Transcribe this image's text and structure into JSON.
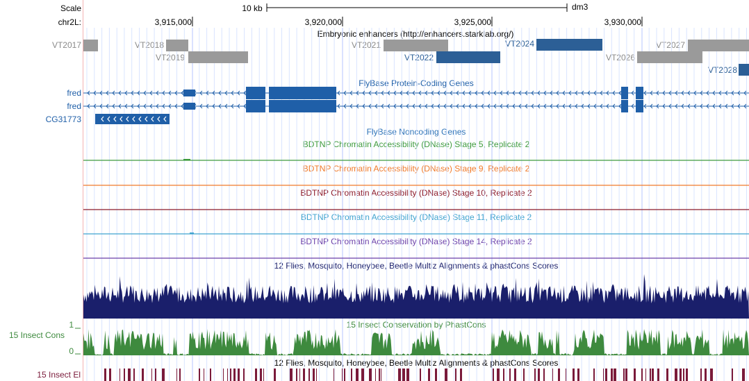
{
  "assembly": "dm3",
  "scale": {
    "label": "Scale",
    "bar_label": "10 kb"
  },
  "chrom": {
    "label": "chr2L:"
  },
  "ticks": [
    {
      "label": "3,915,000"
    },
    {
      "label": "3,920,000"
    },
    {
      "label": "3,925,000"
    },
    {
      "label": "3,930,000"
    }
  ],
  "enhancers": {
    "title": "Embryonic enhancers (http://enhancers.starklab.org/)",
    "items": [
      {
        "label": "VT2017",
        "color": "#9a9a9a",
        "highlighted": false
      },
      {
        "label": "VT2018",
        "color": "#9a9a9a",
        "highlighted": false
      },
      {
        "label": "VT2019",
        "color": "#9a9a9a",
        "highlighted": false
      },
      {
        "label": "VT2021",
        "color": "#9a9a9a",
        "highlighted": false
      },
      {
        "label": "VT2022",
        "color": "#2c5f96",
        "highlighted": true
      },
      {
        "label": "VT2024",
        "color": "#2c5f96",
        "highlighted": true
      },
      {
        "label": "VT2026",
        "color": "#9a9a9a",
        "highlighted": false
      },
      {
        "label": "VT2027",
        "color": "#9a9a9a",
        "highlighted": false
      },
      {
        "label": "VT2028",
        "color": "#2c5f96",
        "highlighted": true
      }
    ]
  },
  "genes": {
    "title": "FlyBase Protein-Coding Genes",
    "color": "#1f5fa8",
    "items": [
      {
        "label": "fred"
      },
      {
        "label": "fred"
      },
      {
        "label": "CG31773"
      }
    ]
  },
  "noncoding": {
    "title": "FlyBase Noncoding Genes",
    "color": "#2e73b8"
  },
  "dnase_tracks": [
    {
      "title": "BDTNP Chromatin Accessibility (DNase) Stage 5, Replicate 2",
      "color": "#3d9a3d"
    },
    {
      "title": "BDTNP Chromatin Accessibility (DNase) Stage 9, Replicate 2",
      "color": "#f07a2a"
    },
    {
      "title": "BDTNP Chromatin Accessibility (DNase) Stage 10, Replicate 2",
      "color": "#8b1a2a"
    },
    {
      "title": "BDTNP Chromatin Accessibility (DNase) Stage 11, Replicate 2",
      "color": "#3fa3cf"
    },
    {
      "title": "BDTNP Chromatin Accessibility (DNase) Stage 14, Replicate 2",
      "color": "#6a3fa8"
    }
  ],
  "multiz": {
    "title": "12 Flies, Mosquito, Honeybee, Beetle Multiz Alignments & phastCons Scores",
    "color": "#1a1f6b"
  },
  "phastcons": {
    "title": "15 Insect Conservation by PhastCons",
    "side_label": "15 Insect Cons",
    "y_max": "1",
    "y_min": "0",
    "color": "#3e8a3e"
  },
  "elements": {
    "title": "12 Flies, Mosquito, Honeybee, Beetle Multiz Alignments & phastCons Scores",
    "side_label": "15 Insect El",
    "color": "#7a1a3a"
  }
}
